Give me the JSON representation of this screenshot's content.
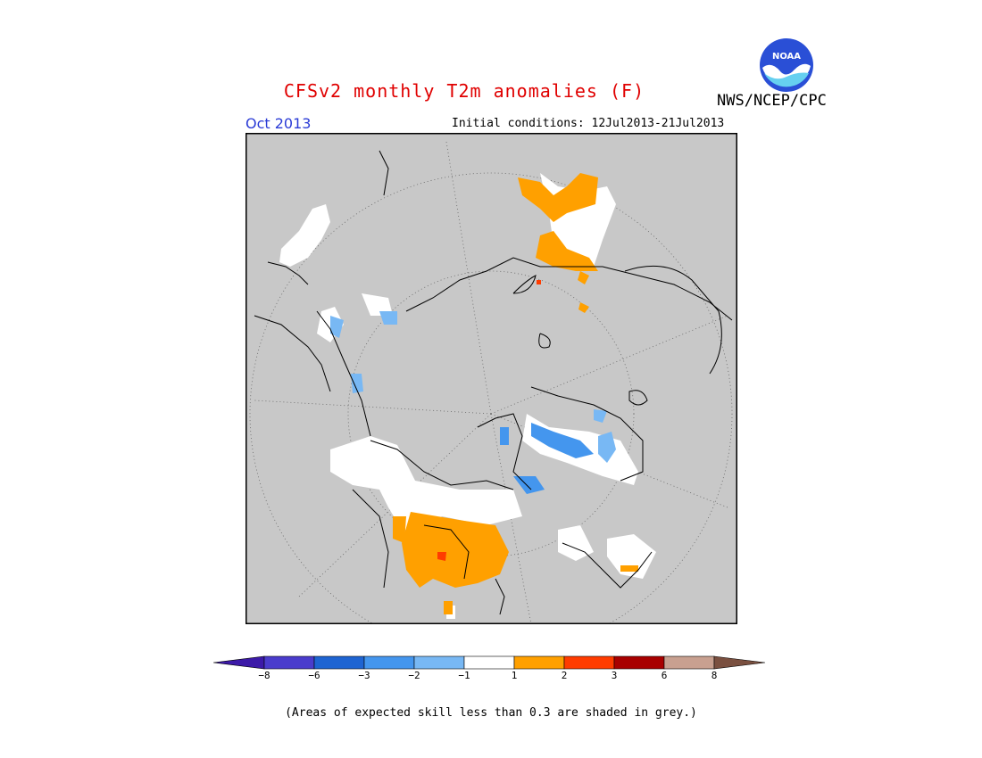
{
  "header": {
    "title": "CFSv2 monthly T2m anomalies (F)",
    "credit": "NWS/NCEP/CPC",
    "logo_text": "NOAA",
    "month": "Oct 2013",
    "initial_conditions": "Initial conditions: 12Jul2013-21Jul2013"
  },
  "legend": {
    "colors": [
      "#3c1aa8",
      "#4a3ccc",
      "#1e64d2",
      "#4496ee",
      "#78b8f4",
      "#ffffff",
      "#ffa000",
      "#ff3c00",
      "#a80000",
      "#c8a090",
      "#7a5040"
    ],
    "ticks": [
      "−8",
      "−6",
      "−3",
      "−2",
      "−1",
      "1",
      "2",
      "3",
      "6",
      "8"
    ]
  },
  "map": {
    "projection": "north polar stereographic",
    "background": "#c8c8c8"
  },
  "footnote": "(Areas of expected skill less than 0.3 are shaded in grey.)"
}
